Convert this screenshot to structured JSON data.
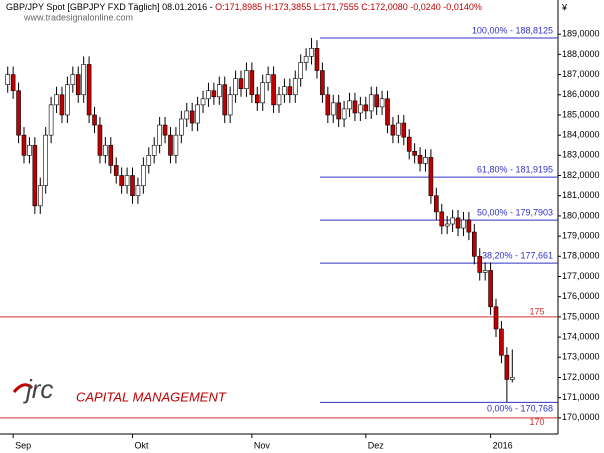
{
  "chart_data": {
    "type": "candlestick",
    "title": "GBP/JPY Spot [GBPJPY FXD  Täglich] 08.01.2016 -",
    "subtitle": "O:171,8985 H:173,3855 L:171,7555 C:172,0080 -0,0240 -0,0140%",
    "watermark": "www.tradesignalonline.com",
    "currency": "¥",
    "logo": {
      "mark": "jrc",
      "text": "CAPITAL MANAGEMENT"
    },
    "up_color": "#ffffff",
    "down_color": "#c00000",
    "categories": [
      null,
      "Sep",
      null,
      null,
      null,
      null,
      null,
      null,
      null,
      null,
      null,
      null,
      null,
      null,
      null,
      null,
      null,
      null,
      null,
      null,
      null,
      null,
      null,
      "Okt",
      null,
      null,
      null,
      null,
      null,
      null,
      null,
      null,
      null,
      null,
      null,
      null,
      null,
      null,
      null,
      null,
      null,
      null,
      null,
      null,
      null,
      "Nov",
      null,
      null,
      null,
      null,
      null,
      null,
      null,
      null,
      null,
      null,
      null,
      null,
      null,
      null,
      null,
      null,
      null,
      null,
      null,
      null,
      "Dez",
      null,
      null,
      null,
      null,
      null,
      null,
      null,
      null,
      null,
      null,
      null,
      null,
      null,
      null,
      null,
      null,
      null,
      null,
      null,
      null,
      null,
      null,
      "2016",
      null,
      null,
      null,
      null
    ],
    "candles": [
      [
        186.5,
        187.4,
        186.1,
        187.0
      ],
      [
        187.0,
        187.4,
        185.8,
        186.2
      ],
      [
        186.2,
        186.6,
        183.6,
        184.0
      ],
      [
        184.0,
        184.4,
        182.6,
        183.0
      ],
      [
        183.0,
        183.9,
        182.6,
        183.5
      ],
      [
        183.5,
        183.9,
        180.1,
        180.5
      ],
      [
        180.5,
        181.9,
        180.1,
        181.5
      ],
      [
        181.5,
        184.4,
        181.1,
        184.0
      ],
      [
        184.0,
        185.9,
        183.6,
        185.5
      ],
      [
        185.5,
        186.4,
        185.1,
        186.0
      ],
      [
        186.0,
        186.4,
        184.6,
        185.0
      ],
      [
        185.0,
        186.9,
        184.6,
        186.5
      ],
      [
        186.5,
        187.4,
        186.1,
        187.0
      ],
      [
        187.0,
        187.4,
        185.6,
        186.0
      ],
      [
        186.0,
        187.9,
        185.6,
        187.5
      ],
      [
        187.5,
        187.9,
        184.6,
        185.0
      ],
      [
        185.0,
        185.4,
        184.1,
        184.5
      ],
      [
        184.5,
        184.9,
        182.6,
        183.0
      ],
      [
        183.0,
        183.9,
        182.6,
        183.5
      ],
      [
        183.5,
        183.9,
        182.1,
        182.5
      ],
      [
        182.5,
        182.9,
        181.6,
        182.0
      ],
      [
        182.0,
        182.4,
        181.1,
        181.5
      ],
      [
        181.5,
        182.4,
        181.1,
        182.0
      ],
      [
        182.0,
        182.4,
        180.6,
        181.0
      ],
      [
        181.0,
        181.9,
        180.6,
        181.5
      ],
      [
        181.5,
        182.9,
        181.1,
        182.5
      ],
      [
        182.5,
        183.4,
        182.1,
        183.0
      ],
      [
        183.0,
        183.9,
        182.6,
        183.5
      ],
      [
        183.5,
        184.9,
        183.1,
        184.5
      ],
      [
        184.5,
        184.9,
        183.6,
        184.0
      ],
      [
        184.0,
        184.4,
        182.6,
        183.0
      ],
      [
        183.0,
        184.4,
        182.6,
        184.0
      ],
      [
        184.0,
        185.2,
        183.6,
        184.8
      ],
      [
        184.8,
        185.6,
        184.4,
        185.2
      ],
      [
        185.2,
        185.6,
        184.2,
        184.6
      ],
      [
        184.6,
        185.9,
        184.2,
        185.5
      ],
      [
        185.5,
        186.2,
        185.1,
        185.8
      ],
      [
        185.8,
        186.6,
        185.4,
        186.2
      ],
      [
        186.2,
        186.6,
        185.5,
        185.9
      ],
      [
        185.9,
        186.9,
        185.5,
        186.5
      ],
      [
        186.5,
        186.9,
        184.6,
        185.0
      ],
      [
        185.0,
        186.4,
        184.6,
        186.0
      ],
      [
        186.0,
        187.2,
        185.6,
        186.8
      ],
      [
        186.8,
        187.2,
        185.9,
        186.3
      ],
      [
        186.3,
        187.6,
        185.9,
        187.2
      ],
      [
        187.2,
        187.6,
        185.6,
        186.0
      ],
      [
        186.0,
        186.4,
        185.2,
        185.6
      ],
      [
        185.6,
        187.0,
        185.2,
        186.6
      ],
      [
        186.6,
        187.4,
        186.2,
        187.0
      ],
      [
        187.0,
        187.4,
        185.1,
        185.5
      ],
      [
        185.5,
        186.4,
        185.1,
        186.0
      ],
      [
        186.0,
        186.8,
        185.6,
        186.4
      ],
      [
        186.4,
        186.8,
        185.6,
        186.0
      ],
      [
        186.0,
        187.2,
        185.6,
        186.8
      ],
      [
        186.8,
        188.0,
        186.4,
        187.6
      ],
      [
        187.6,
        188.3,
        187.2,
        187.9
      ],
      [
        187.9,
        188.8125,
        187.5,
        188.3
      ],
      [
        188.3,
        188.7,
        186.8,
        187.2
      ],
      [
        187.2,
        187.6,
        185.6,
        186.0
      ],
      [
        186.0,
        186.4,
        184.6,
        185.0
      ],
      [
        185.0,
        186.0,
        184.6,
        185.6
      ],
      [
        185.6,
        186.0,
        184.4,
        184.8
      ],
      [
        184.8,
        185.7,
        184.4,
        185.3
      ],
      [
        185.3,
        186.1,
        184.9,
        185.7
      ],
      [
        185.7,
        186.1,
        184.7,
        185.1
      ],
      [
        185.1,
        185.9,
        184.7,
        185.5
      ],
      [
        185.5,
        185.9,
        184.8,
        185.2
      ],
      [
        185.2,
        186.4,
        184.8,
        186.0
      ],
      [
        186.0,
        186.4,
        185.0,
        185.4
      ],
      [
        185.4,
        186.2,
        185.0,
        185.8
      ],
      [
        185.8,
        186.2,
        184.1,
        184.5
      ],
      [
        184.5,
        184.9,
        183.6,
        184.0
      ],
      [
        184.0,
        185.0,
        183.6,
        184.6
      ],
      [
        184.6,
        185.0,
        183.5,
        183.9
      ],
      [
        183.9,
        184.3,
        182.8,
        183.2
      ],
      [
        183.2,
        183.6,
        182.6,
        183.0
      ],
      [
        183.0,
        183.4,
        182.2,
        182.6
      ],
      [
        182.6,
        183.3,
        182.2,
        182.9
      ],
      [
        182.9,
        183.3,
        180.6,
        181.0
      ],
      [
        181.0,
        181.4,
        179.8,
        180.2
      ],
      [
        180.2,
        180.6,
        179.1,
        179.5
      ],
      [
        179.5,
        180.0,
        179.1,
        179.6
      ],
      [
        179.6,
        180.3,
        179.2,
        179.9
      ],
      [
        179.9,
        180.3,
        179.0,
        179.4
      ],
      [
        179.4,
        180.2,
        179.0,
        179.8
      ],
      [
        179.8,
        180.2,
        178.8,
        179.2
      ],
      [
        179.2,
        179.6,
        177.6,
        178.0
      ],
      [
        178.0,
        178.4,
        176.8,
        177.2
      ],
      [
        177.2,
        177.7,
        176.8,
        177.3
      ],
      [
        177.3,
        177.7,
        175.1,
        175.5
      ],
      [
        175.5,
        175.9,
        174.0,
        174.4
      ],
      [
        174.4,
        174.8,
        172.7,
        173.1
      ],
      [
        173.1,
        173.5,
        170.768,
        171.9
      ],
      [
        171.8985,
        173.3855,
        171.7555,
        172.008
      ]
    ],
    "ylim": [
      169.2,
      190.0
    ],
    "yticks": [
      {
        "value": 170,
        "label": "170,0000"
      },
      {
        "value": 171,
        "label": "171,0000"
      },
      {
        "value": 172,
        "label": "172,0000"
      },
      {
        "value": 173,
        "label": "173,0000"
      },
      {
        "value": 174,
        "label": "174,0000"
      },
      {
        "value": 175,
        "label": "175,0000"
      },
      {
        "value": 176,
        "label": "176,0000"
      },
      {
        "value": 177,
        "label": "177,0000"
      },
      {
        "value": 178,
        "label": "178,0000"
      },
      {
        "value": 179,
        "label": "179,0000"
      },
      {
        "value": 180,
        "label": "180,0000"
      },
      {
        "value": 181,
        "label": "181,0000"
      },
      {
        "value": 182,
        "label": "182,0000"
      },
      {
        "value": 183,
        "label": "183,0000"
      },
      {
        "value": 184,
        "label": "184,0000"
      },
      {
        "value": 185,
        "label": "185,0000"
      },
      {
        "value": 186,
        "label": "186,0000"
      },
      {
        "value": 187,
        "label": "187,0000"
      },
      {
        "value": 188,
        "label": "188,0000"
      },
      {
        "value": 189,
        "label": "189,0000"
      }
    ],
    "fib_color": "#3030c8",
    "fib_levels": [
      {
        "value": 188.8125,
        "label": "100,00% - 188,8125"
      },
      {
        "value": 181.9195,
        "label": "61,80% - 181,9195"
      },
      {
        "value": 179.7903,
        "label": "50,00% - 179,7903"
      },
      {
        "value": 177.661,
        "label": "38,20% - 177,661"
      },
      {
        "value": 170.768,
        "label": "0,00% - 170,768"
      }
    ],
    "level_color": "#d03030",
    "levels": [
      {
        "value": 175,
        "label": "175"
      },
      {
        "value": 170,
        "label": "170"
      }
    ]
  }
}
